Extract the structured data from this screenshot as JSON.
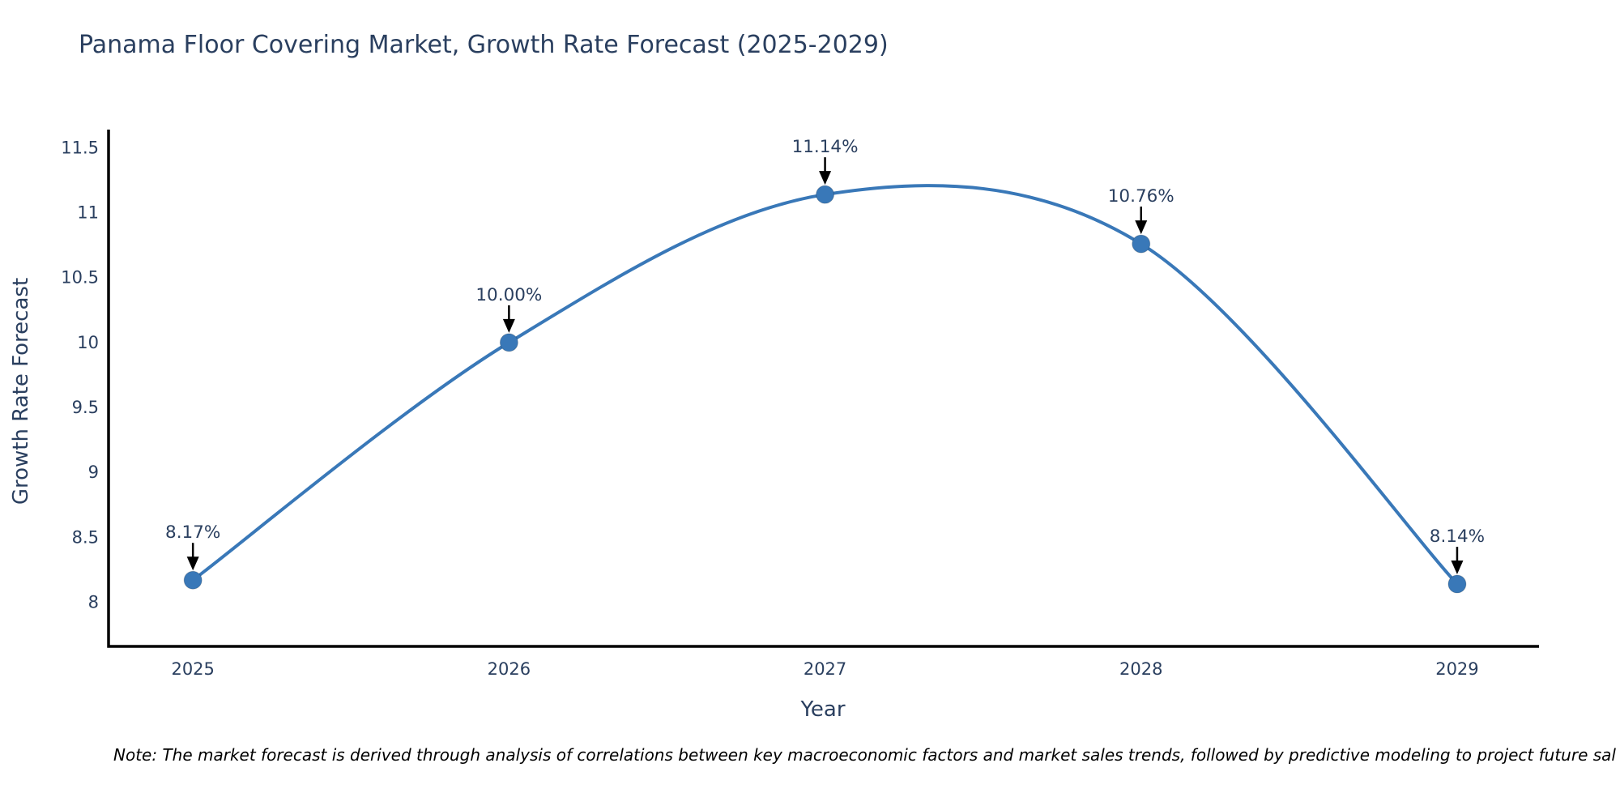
{
  "chart_data": {
    "type": "line",
    "title": "Panama Floor Covering Market, Growth Rate Forecast (2025-2029)",
    "xlabel": "Year",
    "ylabel": "Growth Rate Forecast",
    "x": [
      2025,
      2026,
      2027,
      2028,
      2029
    ],
    "values": [
      8.17,
      10.0,
      11.14,
      10.76,
      8.14
    ],
    "point_labels": [
      "8.17%",
      "10.00%",
      "11.14%",
      "10.76%",
      "8.14%"
    ],
    "yticks": [
      8,
      8.5,
      9,
      9.5,
      10,
      10.5,
      11,
      11.5
    ],
    "ytick_labels": [
      "8",
      "8.5",
      "9",
      "9.5",
      "10",
      "10.5",
      "11",
      "11.5"
    ],
    "xlim": [
      2024.733,
      2029.259
    ],
    "ylim": [
      7.66,
      11.64
    ],
    "grid": false,
    "line_shape": "spline",
    "legend": "none",
    "line_color": "#3978b8",
    "marker_color": "#3978b8",
    "axis_color": "#000000",
    "arrow_color": "#000000",
    "text_color": "#2a3f5f"
  },
  "note": "Note: The market forecast is derived through analysis of correlations between key macroeconomic factors and market sales trends, followed by predictive modeling to project future sal"
}
